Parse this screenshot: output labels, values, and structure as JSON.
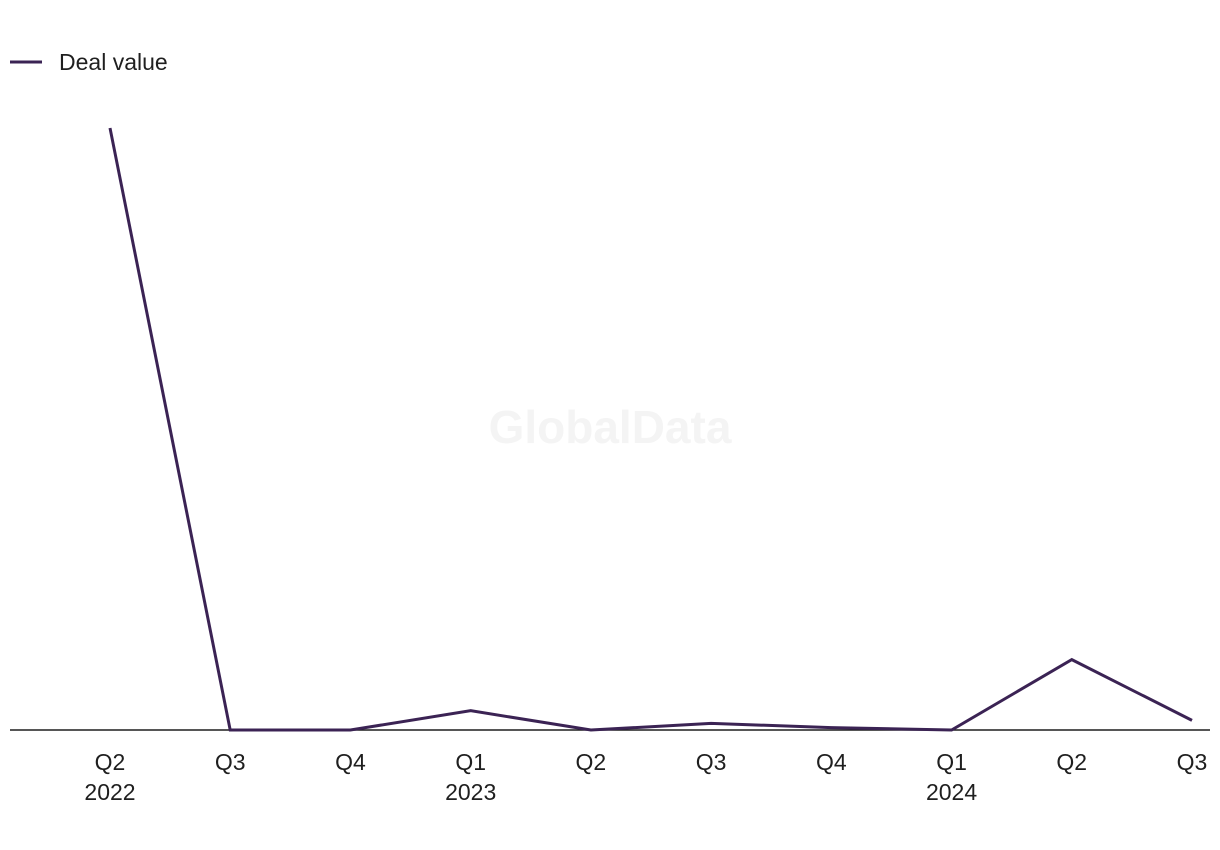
{
  "chart_data": {
    "type": "line",
    "title": "",
    "xlabel": "",
    "ylabel": "",
    "categories": [
      "Q2",
      "Q3",
      "Q4",
      "Q1",
      "Q2",
      "Q3",
      "Q4",
      "Q1",
      "Q2",
      "Q3"
    ],
    "year_labels": [
      "2022",
      "",
      "",
      "2023",
      "",
      "",
      "",
      "2024",
      "",
      ""
    ],
    "series": [
      {
        "name": "Deal value",
        "color": "#3b2354",
        "values": [
          100,
          0,
          0,
          3.2,
          0,
          1.1,
          0.4,
          0,
          11.7,
          1.6
        ]
      }
    ],
    "ylim": [
      0,
      100
    ],
    "grid": false,
    "legend_position": "top-left",
    "watermark": "GlobalData"
  }
}
